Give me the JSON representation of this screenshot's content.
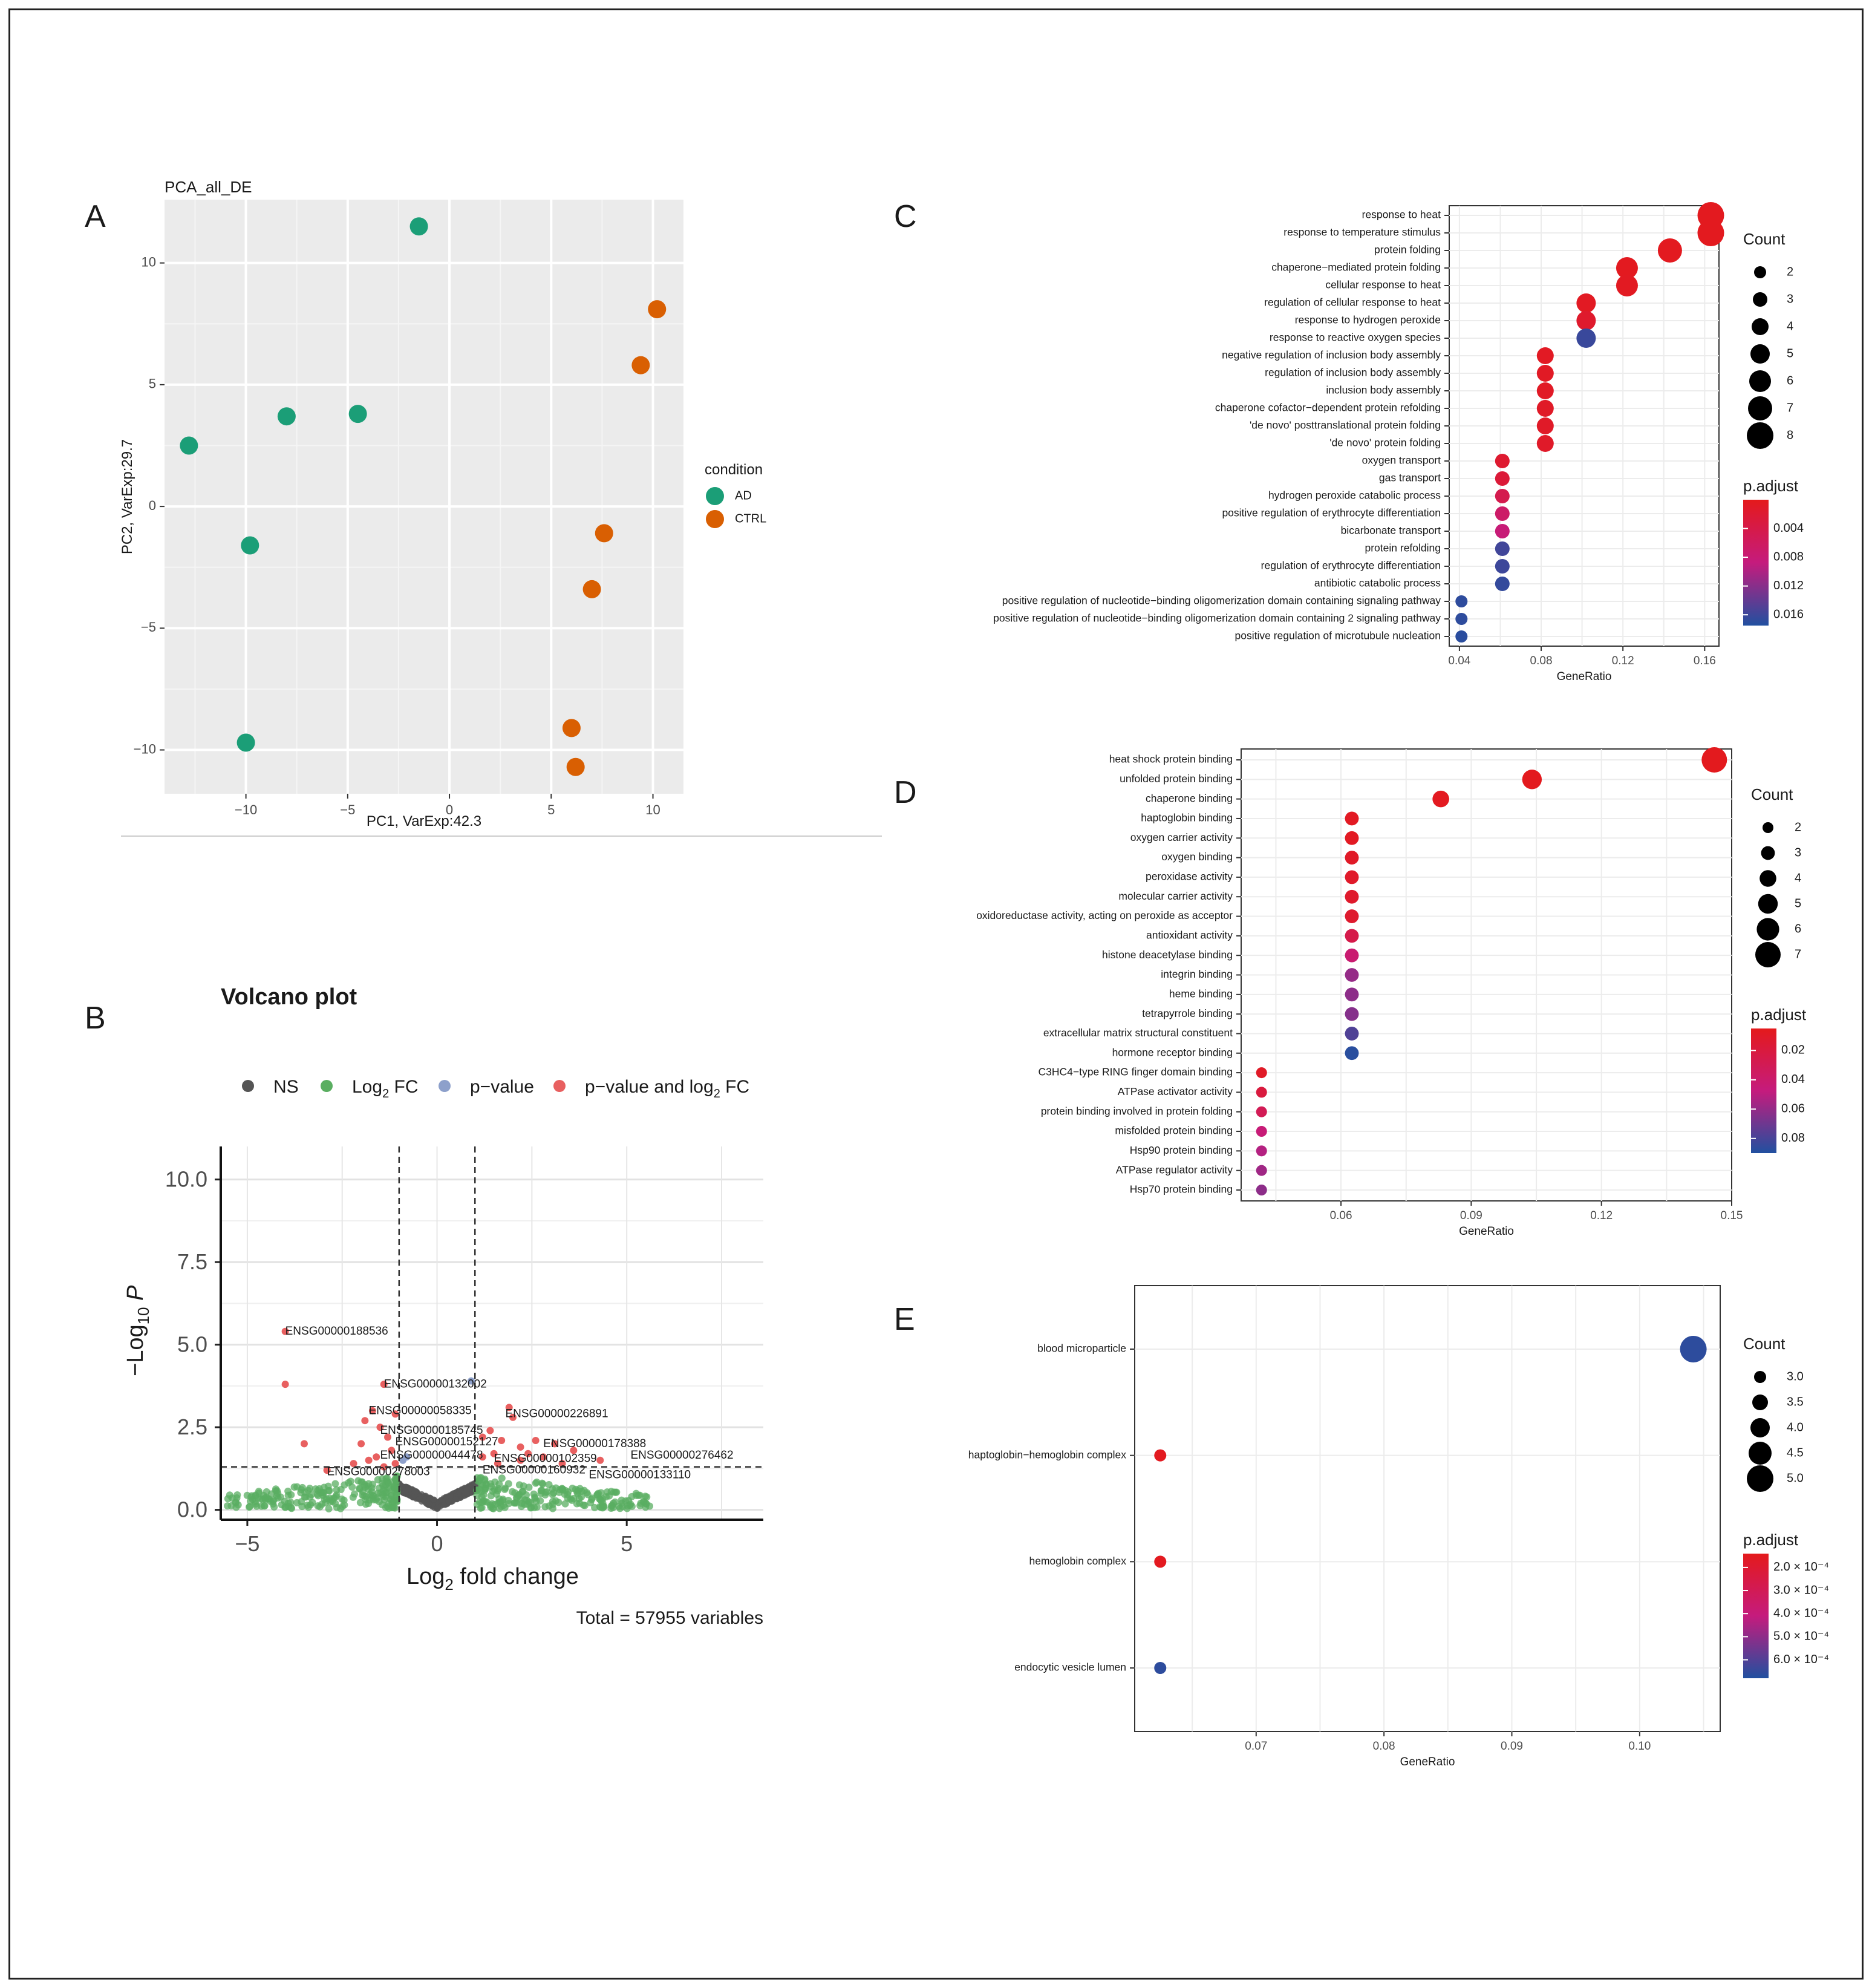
{
  "panel_letters": [
    "A",
    "B",
    "C",
    "D",
    "E"
  ],
  "colors": {
    "AD": "#1b9e77",
    "CTRL": "#d95f02",
    "padj_high": "#e41a1c",
    "padj_mid": "#c51b7d",
    "padj_low": "#2150a0",
    "NS": "#555555",
    "FC": "#5aae61",
    "P": "#8da0cb",
    "PFC": "#e86060"
  },
  "chart_data": [
    {
      "id": "A",
      "type": "scatter",
      "title": "PCA_all_DE",
      "xlabel": "PC1, VarExp:42.3",
      "ylabel": "PC2, VarExp:29.7",
      "xlim": [
        -14,
        11.5
      ],
      "ylim": [
        -11.8,
        12.6
      ],
      "xticks": [
        -10,
        -5,
        0,
        5,
        10
      ],
      "yticks": [
        -10,
        -5,
        0,
        5,
        10
      ],
      "xtick_labels": [
        "−10",
        "−5",
        "0",
        "5",
        "10"
      ],
      "ytick_labels": [
        "−10",
        "−5",
        "0",
        "5",
        "10"
      ],
      "legend_title": "condition",
      "series": [
        {
          "name": "AD",
          "points": [
            [
              -1.5,
              11.5
            ],
            [
              -8.0,
              3.7
            ],
            [
              -4.5,
              3.8
            ],
            [
              -12.8,
              2.5
            ],
            [
              -9.8,
              -1.6
            ],
            [
              -10.0,
              -9.7
            ]
          ]
        },
        {
          "name": "CTRL",
          "points": [
            [
              10.2,
              8.1
            ],
            [
              9.4,
              5.8
            ],
            [
              7.6,
              -1.1
            ],
            [
              7.0,
              -3.4
            ],
            [
              6.0,
              -9.1
            ],
            [
              6.2,
              -10.7
            ]
          ]
        }
      ]
    },
    {
      "id": "B",
      "type": "scatter",
      "title": "Volcano plot",
      "xlabel": "Log2 fold change",
      "ylabel": "−Log10 P",
      "xlim": [
        -5.7,
        8.6
      ],
      "ylim": [
        -0.3,
        11.0
      ],
      "xticks": [
        -5,
        0,
        5
      ],
      "yticks": [
        0,
        2.5,
        5,
        7.5,
        10
      ],
      "xtick_labels": [
        "−5",
        "0",
        "5"
      ],
      "ytick_labels": [
        "0.0",
        "2.5",
        "5.0",
        "7.5",
        "10.0"
      ],
      "fc_cutoff": 1,
      "p_cutoff": 1.3,
      "caption": "Total = 57955 variables",
      "legend": [
        {
          "label": "NS",
          "sub": "",
          "tail": ""
        },
        {
          "label": "Log",
          "sub": "2",
          "tail": " FC"
        },
        {
          "label": "p−value",
          "sub": "",
          "tail": ""
        },
        {
          "label": "p−value and log",
          "sub": "2",
          "tail": " FC"
        }
      ],
      "highlight_points": [
        [
          -4.0,
          5.4
        ],
        [
          -4.0,
          3.8
        ],
        [
          -3.5,
          2.0
        ],
        [
          -2.9,
          1.2
        ],
        [
          -1.4,
          3.8
        ],
        [
          -1.7,
          3.0
        ],
        [
          -1.9,
          2.7
        ],
        [
          -1.5,
          2.5
        ],
        [
          -1.3,
          2.2
        ],
        [
          -1.2,
          1.8
        ],
        [
          -2.0,
          2.0
        ],
        [
          -1.6,
          1.6
        ],
        [
          -1.1,
          1.4
        ],
        [
          -1.4,
          1.3
        ],
        [
          -1.1,
          2.9
        ],
        [
          -1.8,
          1.5
        ],
        [
          -2.2,
          1.4
        ],
        [
          1.9,
          3.1
        ],
        [
          2.0,
          2.8
        ],
        [
          1.4,
          2.4
        ],
        [
          1.7,
          2.1
        ],
        [
          2.6,
          2.1
        ],
        [
          3.1,
          2.0
        ],
        [
          3.6,
          1.8
        ],
        [
          1.2,
          2.2
        ],
        [
          1.5,
          1.7
        ],
        [
          2.2,
          1.5
        ],
        [
          1.2,
          1.6
        ],
        [
          4.3,
          1.5
        ],
        [
          2.4,
          1.7
        ],
        [
          3.3,
          1.4
        ],
        [
          1.6,
          1.4
        ],
        [
          2.8,
          1.6
        ],
        [
          2.2,
          1.9
        ]
      ],
      "pvalue_points": [
        [
          0.9,
          3.9
        ],
        [
          -0.9,
          1.5
        ],
        [
          -0.8,
          1.6
        ]
      ],
      "gene_labels": [
        {
          "text": "ENSG00000188536",
          "x": -4.0,
          "y": 5.3,
          "ha": "start"
        },
        {
          "text": "ENSG00000132002",
          "x": -1.4,
          "y": 3.7,
          "ha": "start"
        },
        {
          "text": "ENSG00000058335",
          "x": -1.8,
          "y": 2.9,
          "ha": "start"
        },
        {
          "text": "ENSG00000226891",
          "x": 1.8,
          "y": 2.8,
          "ha": "start"
        },
        {
          "text": "ENSG00000185745",
          "x": -1.5,
          "y": 2.3,
          "ha": "start"
        },
        {
          "text": "ENSG00000152127",
          "x": -1.1,
          "y": 1.95,
          "ha": "start"
        },
        {
          "text": "ENSG00000178388",
          "x": 2.8,
          "y": 1.9,
          "ha": "start"
        },
        {
          "text": "ENSG00000044478",
          "x": -1.5,
          "y": 1.55,
          "ha": "start"
        },
        {
          "text": "ENSG00000276462",
          "x": 5.1,
          "y": 1.55,
          "ha": "start"
        },
        {
          "text": "ENSG00000102359",
          "x": 1.5,
          "y": 1.45,
          "ha": "start"
        },
        {
          "text": "ENSG00000278003",
          "x": -2.9,
          "y": 1.05,
          "ha": "start"
        },
        {
          "text": "ENSG00000160932",
          "x": 1.2,
          "y": 1.1,
          "ha": "start"
        },
        {
          "text": "ENSG00000133110",
          "x": 4.0,
          "y": 0.95,
          "ha": "start"
        }
      ]
    },
    {
      "id": "C",
      "type": "scatter",
      "xlabel": "GeneRatio",
      "xlim": [
        0.035,
        0.167
      ],
      "xticks": [
        0.04,
        0.08,
        0.12,
        0.16
      ],
      "xtick_labels": [
        "0.04",
        "0.08",
        "0.12",
        "0.16"
      ],
      "size_legend_title": "Count",
      "size_legend": [
        2,
        3,
        4,
        5,
        6,
        7,
        8
      ],
      "size_range": [
        2,
        8
      ],
      "color_legend_title": "p.adjust",
      "color_range": [
        0.0,
        0.0175
      ],
      "color_ticks": [
        0.004,
        0.008,
        0.012,
        0.016
      ],
      "color_tick_labels": [
        "0.004",
        "0.008",
        "0.012",
        "0.016"
      ],
      "terms": [
        {
          "term": "response to heat",
          "ratio": 0.163,
          "count": 8,
          "padj": 0.0003
        },
        {
          "term": "response to temperature stimulus",
          "ratio": 0.163,
          "count": 8,
          "padj": 0.0003
        },
        {
          "term": "protein folding",
          "ratio": 0.143,
          "count": 7,
          "padj": 0.0004
        },
        {
          "term": "chaperone−mediated protein folding",
          "ratio": 0.122,
          "count": 6,
          "padj": 0.0004
        },
        {
          "term": "cellular response to heat",
          "ratio": 0.122,
          "count": 6,
          "padj": 0.0005
        },
        {
          "term": "regulation of cellular response to heat",
          "ratio": 0.102,
          "count": 5,
          "padj": 0.0006
        },
        {
          "term": "response to hydrogen peroxide",
          "ratio": 0.102,
          "count": 5,
          "padj": 0.0015
        },
        {
          "term": "response to reactive oxygen species",
          "ratio": 0.102,
          "count": 5,
          "padj": 0.0162
        },
        {
          "term": "negative regulation of inclusion body assembly",
          "ratio": 0.082,
          "count": 4,
          "padj": 0.0007
        },
        {
          "term": "regulation of inclusion body assembly",
          "ratio": 0.082,
          "count": 4,
          "padj": 0.0008
        },
        {
          "term": "inclusion body assembly",
          "ratio": 0.082,
          "count": 4,
          "padj": 0.0009
        },
        {
          "term": "chaperone cofactor−dependent protein refolding",
          "ratio": 0.082,
          "count": 4,
          "padj": 0.001
        },
        {
          "term": "'de novo' posttranslational protein folding",
          "ratio": 0.082,
          "count": 4,
          "padj": 0.0011
        },
        {
          "term": "'de novo' protein folding",
          "ratio": 0.082,
          "count": 4,
          "padj": 0.0012
        },
        {
          "term": "oxygen transport",
          "ratio": 0.061,
          "count": 3,
          "padj": 0.0018
        },
        {
          "term": "gas transport",
          "ratio": 0.061,
          "count": 3,
          "padj": 0.0025
        },
        {
          "term": "hydrogen peroxide catabolic process",
          "ratio": 0.061,
          "count": 3,
          "padj": 0.0045
        },
        {
          "term": "positive regulation of erythrocyte differentiation",
          "ratio": 0.061,
          "count": 3,
          "padj": 0.0068
        },
        {
          "term": "bicarbonate transport",
          "ratio": 0.061,
          "count": 3,
          "padj": 0.0082
        },
        {
          "term": "protein refolding",
          "ratio": 0.061,
          "count": 3,
          "padj": 0.0158
        },
        {
          "term": "regulation of erythrocyte differentiation",
          "ratio": 0.061,
          "count": 3,
          "padj": 0.016
        },
        {
          "term": "antibiotic catabolic process",
          "ratio": 0.061,
          "count": 3,
          "padj": 0.0165
        },
        {
          "term": "positive regulation of nucleotide−binding oligomerization domain containing signaling pathway",
          "ratio": 0.041,
          "count": 2,
          "padj": 0.0168
        },
        {
          "term": "positive regulation of nucleotide−binding oligomerization domain containing 2 signaling pathway",
          "ratio": 0.041,
          "count": 2,
          "padj": 0.0168
        },
        {
          "term": "positive regulation of microtubule nucleation",
          "ratio": 0.041,
          "count": 2,
          "padj": 0.017
        }
      ]
    },
    {
      "id": "D",
      "type": "scatter",
      "xlabel": "GeneRatio",
      "xlim": [
        0.037,
        0.15
      ],
      "xticks": [
        0.06,
        0.09,
        0.12,
        0.15
      ],
      "xtick_labels": [
        "0.06",
        "0.09",
        "0.12",
        "0.15"
      ],
      "size_legend_title": "Count",
      "size_legend": [
        2,
        3,
        4,
        5,
        6,
        7
      ],
      "size_range": [
        2,
        7
      ],
      "color_legend_title": "p.adjust",
      "color_range": [
        0.005,
        0.09
      ],
      "color_ticks": [
        0.02,
        0.04,
        0.06,
        0.08
      ],
      "color_tick_labels": [
        "0.02",
        "0.04",
        "0.06",
        "0.08"
      ],
      "terms": [
        {
          "term": "heat shock protein binding",
          "ratio": 0.146,
          "count": 7,
          "padj": 0.006
        },
        {
          "term": "unfolded protein binding",
          "ratio": 0.104,
          "count": 5,
          "padj": 0.006
        },
        {
          "term": "chaperone binding",
          "ratio": 0.083,
          "count": 4,
          "padj": 0.007
        },
        {
          "term": "haptoglobin binding",
          "ratio": 0.0625,
          "count": 3,
          "padj": 0.008
        },
        {
          "term": "oxygen carrier activity",
          "ratio": 0.0625,
          "count": 3,
          "padj": 0.008
        },
        {
          "term": "oxygen binding",
          "ratio": 0.0625,
          "count": 3,
          "padj": 0.01
        },
        {
          "term": "peroxidase activity",
          "ratio": 0.0625,
          "count": 3,
          "padj": 0.011
        },
        {
          "term": "molecular carrier activity",
          "ratio": 0.0625,
          "count": 3,
          "padj": 0.012
        },
        {
          "term": "oxidoreductase activity, acting on peroxide as acceptor",
          "ratio": 0.0625,
          "count": 3,
          "padj": 0.013
        },
        {
          "term": "antioxidant activity",
          "ratio": 0.0625,
          "count": 3,
          "padj": 0.025
        },
        {
          "term": "histone deacetylase binding",
          "ratio": 0.0625,
          "count": 3,
          "padj": 0.042
        },
        {
          "term": "integrin binding",
          "ratio": 0.0625,
          "count": 3,
          "padj": 0.06
        },
        {
          "term": "heme binding",
          "ratio": 0.0625,
          "count": 3,
          "padj": 0.062
        },
        {
          "term": "tetrapyrrole binding",
          "ratio": 0.0625,
          "count": 3,
          "padj": 0.064
        },
        {
          "term": "extracellular matrix structural constituent",
          "ratio": 0.0625,
          "count": 3,
          "padj": 0.078
        },
        {
          "term": "hormone receptor binding",
          "ratio": 0.0625,
          "count": 3,
          "padj": 0.088
        },
        {
          "term": "C3HC4−type RING finger domain binding",
          "ratio": 0.0417,
          "count": 2,
          "padj": 0.01
        },
        {
          "term": "ATPase activator activity",
          "ratio": 0.0417,
          "count": 2,
          "padj": 0.02
        },
        {
          "term": "protein binding involved in protein folding",
          "ratio": 0.0417,
          "count": 2,
          "padj": 0.03
        },
        {
          "term": "misfolded protein binding",
          "ratio": 0.0417,
          "count": 2,
          "padj": 0.045
        },
        {
          "term": "Hsp90 protein binding",
          "ratio": 0.0417,
          "count": 2,
          "padj": 0.052
        },
        {
          "term": "ATPase regulator activity",
          "ratio": 0.0417,
          "count": 2,
          "padj": 0.057
        },
        {
          "term": "Hsp70 protein binding",
          "ratio": 0.0417,
          "count": 2,
          "padj": 0.062
        }
      ]
    },
    {
      "id": "E",
      "type": "scatter",
      "xlabel": "GeneRatio",
      "xlim": [
        0.0605,
        0.1063
      ],
      "xticks": [
        0.07,
        0.08,
        0.09,
        0.1
      ],
      "xtick_labels": [
        "0.07",
        "0.08",
        "0.09",
        "0.10"
      ],
      "size_legend_title": "Count",
      "size_legend": [
        3.0,
        3.5,
        4.0,
        4.5,
        5.0
      ],
      "size_legend_labels": [
        "3.0",
        "3.5",
        "4.0",
        "4.5",
        "5.0"
      ],
      "size_range": [
        3,
        5
      ],
      "color_legend_title": "p.adjust",
      "color_range": [
        0.00014,
        0.00068
      ],
      "color_ticks": [
        0.0002,
        0.0003,
        0.0004,
        0.0005,
        0.0006
      ],
      "color_tick_labels": [
        "2.0 × 10⁻⁴",
        "3.0 × 10⁻⁴",
        "4.0 × 10⁻⁴",
        "5.0 × 10⁻⁴",
        "6.0 × 10⁻⁴"
      ],
      "terms": [
        {
          "term": "blood microparticle",
          "ratio": 0.1042,
          "count": 5,
          "padj": 0.00066
        },
        {
          "term": "haptoglobin−hemoglobin complex",
          "ratio": 0.0625,
          "count": 3,
          "padj": 0.00015
        },
        {
          "term": "hemoglobin complex",
          "ratio": 0.0625,
          "count": 3,
          "padj": 0.00015
        },
        {
          "term": "endocytic vesicle lumen",
          "ratio": 0.0625,
          "count": 3,
          "padj": 0.00066
        }
      ]
    }
  ]
}
